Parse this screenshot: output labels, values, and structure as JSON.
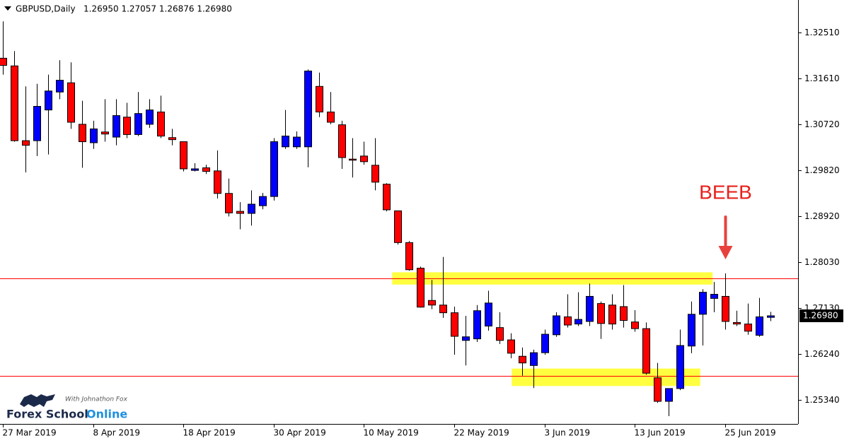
{
  "chart_data": {
    "type": "candlestick",
    "title": "GBPUSD,Daily",
    "ohlc_text": "1.26950 1.27057 1.26876 1.26980",
    "categories": [
      "27 Mar 2019",
      null,
      null,
      null,
      null,
      null,
      null,
      null,
      "8 Apr 2019",
      null,
      null,
      null,
      null,
      null,
      null,
      null,
      "18 Apr 2019",
      null,
      null,
      null,
      null,
      null,
      null,
      null,
      "30 Apr 2019",
      null,
      null,
      null,
      null,
      null,
      null,
      null,
      "10 May 2019",
      null,
      null,
      null,
      null,
      null,
      null,
      null,
      "22 May 2019",
      null,
      null,
      null,
      null,
      null,
      null,
      null,
      "3 Jun 2019",
      null,
      null,
      null,
      null,
      null,
      null,
      null,
      "13 Jun 2019",
      null,
      null,
      null,
      null,
      null,
      null,
      null,
      "25 Jun 2019",
      null,
      null,
      null,
      null
    ],
    "open": [
      1.3201,
      1.3186,
      1.304,
      1.304,
      1.31,
      1.3135,
      1.3153,
      1.3072,
      1.3036,
      1.3057,
      1.3047,
      1.3086,
      1.3052,
      1.3072,
      1.3096,
      1.3046,
      1.3038,
      1.2982,
      1.2987,
      1.2981,
      1.2937,
      1.2902,
      1.2898,
      1.2913,
      1.2931,
      1.3028,
      1.3028,
      1.3028,
      1.3146,
      1.3096,
      1.3071,
      1.3004,
      1.301,
      1.2992,
      1.2955,
      1.2903,
      1.2841,
      1.2791,
      1.2728,
      1.2719,
      1.2704,
      1.265,
      1.2653,
      1.2678,
      1.2675,
      1.2651,
      1.2619,
      1.2601,
      1.2626,
      1.2661,
      1.2696,
      1.2682,
      1.2687,
      1.2722,
      1.2719,
      1.2716,
      1.2686,
      1.2673,
      1.2577,
      1.2531,
      1.2556,
      1.2639,
      1.2701,
      1.2732,
      1.2736,
      1.2685,
      1.2682,
      1.266,
      1.2695
    ],
    "high": [
      1.3273,
      1.3215,
      1.3146,
      1.3151,
      1.3169,
      1.3197,
      1.3193,
      1.3118,
      1.3079,
      1.3121,
      1.3121,
      1.3114,
      1.3135,
      1.3121,
      1.3128,
      1.3063,
      1.3038,
      1.2996,
      1.2993,
      1.3021,
      1.2966,
      1.292,
      1.2943,
      1.2938,
      1.3045,
      1.31,
      1.3058,
      1.3179,
      1.3173,
      1.3135,
      1.3079,
      1.3045,
      1.3038,
      1.3045,
      1.2957,
      1.2903,
      1.2844,
      1.2794,
      1.2768,
      1.2813,
      1.2716,
      1.2698,
      1.2719,
      1.2747,
      1.2705,
      1.2664,
      1.2636,
      1.2632,
      1.2671,
      1.2705,
      1.274,
      1.2744,
      1.2761,
      1.2726,
      1.274,
      1.2758,
      1.2709,
      1.2685,
      1.2606,
      1.2556,
      1.2671,
      1.2726,
      1.275,
      1.2764,
      1.2781,
      1.2708,
      1.2722,
      1.2733,
      1.27057
    ],
    "low": [
      1.3169,
      1.3038,
      1.2978,
      1.301,
      1.3013,
      1.3121,
      1.3063,
      1.2987,
      1.3024,
      1.3038,
      1.3031,
      1.3045,
      1.3049,
      1.3065,
      1.3045,
      1.3031,
      1.298,
      1.298,
      1.2975,
      1.2927,
      1.2892,
      1.2867,
      1.2874,
      1.2906,
      1.2923,
      1.3024,
      1.3024,
      1.2988,
      1.3086,
      1.3072,
      1.2985,
      1.2968,
      1.2993,
      1.2943,
      1.2902,
      1.2837,
      1.2786,
      1.2714,
      1.2711,
      1.2694,
      1.2622,
      1.2601,
      1.2647,
      1.2669,
      1.2643,
      1.2615,
      1.2581,
      1.2557,
      1.2622,
      1.2657,
      1.2675,
      1.2678,
      1.2678,
      1.2653,
      1.2671,
      1.2675,
      1.2667,
      1.2583,
      1.2528,
      1.2502,
      1.2553,
      1.2625,
      1.264,
      1.2705,
      1.2671,
      1.2678,
      1.2661,
      1.2657,
      1.26876
    ],
    "close": [
      1.3187,
      1.304,
      1.3031,
      1.3107,
      1.3137,
      1.3158,
      1.3076,
      1.3038,
      1.3063,
      1.3053,
      1.3089,
      1.3052,
      1.3093,
      1.31,
      1.3049,
      1.3042,
      1.2985,
      1.2985,
      1.298,
      1.2937,
      1.2899,
      1.2898,
      1.2916,
      1.2931,
      1.3038,
      1.3049,
      1.3047,
      1.3176,
      1.3096,
      1.3076,
      1.3007,
      1.3002,
      1.2999,
      1.2959,
      1.2905,
      1.2841,
      1.2788,
      1.2715,
      1.2719,
      1.2704,
      1.2658,
      1.2657,
      1.2708,
      1.2723,
      1.265,
      1.2625,
      1.2606,
      1.2626,
      1.2662,
      1.2698,
      1.268,
      1.2691,
      1.2736,
      1.2683,
      1.2682,
      1.2689,
      1.2673,
      1.2586,
      1.2531,
      1.2556,
      1.264,
      1.2701,
      1.2744,
      1.274,
      1.2687,
      1.2682,
      1.2668,
      1.2696,
      1.2698
    ],
    "up_color": "#0000ff",
    "down_color": "#ff0000",
    "ylim": [
      1.24869,
      1.33147
    ],
    "yticks": [
      {
        "value": 1.2534,
        "label": "1.25340"
      },
      {
        "value": 1.2624,
        "label": "1.26240"
      },
      {
        "value": 1.2713,
        "label": "1.27130"
      },
      {
        "value": 1.2803,
        "label": "1.28030"
      },
      {
        "value": 1.2892,
        "label": "1.28920"
      },
      {
        "value": 1.2982,
        "label": "1.29820"
      },
      {
        "value": 1.3072,
        "label": "1.30720"
      },
      {
        "value": 1.3161,
        "label": "1.31610"
      },
      {
        "value": 1.3251,
        "label": "1.32510"
      }
    ],
    "current_price": {
      "value": 1.2698,
      "label": "1.26980"
    },
    "levels": [
      {
        "value": 1.2771,
        "color": "#ff0000"
      },
      {
        "value": 1.2581,
        "color": "#ff0000"
      }
    ],
    "zones": [
      {
        "x": [
          34.5,
          62.9
        ],
        "y": [
          1.2759,
          1.2783
        ],
        "color": "#ffff00"
      },
      {
        "x": [
          45.1,
          61.8
        ],
        "y": [
          1.2561,
          1.2595
        ],
        "color": "#ffff00"
      }
    ],
    "annotation": "BEEB",
    "logo": {
      "tagline": "With Johnathon Fox",
      "name": "Forex School",
      "name_accent": "Online"
    }
  }
}
